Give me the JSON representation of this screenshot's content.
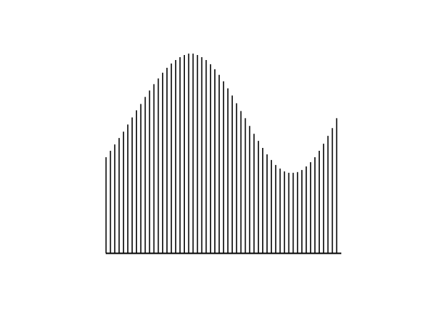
{
  "chart_data": {
    "type": "bar",
    "title": "",
    "xlabel": "",
    "ylabel": "",
    "grid": false,
    "legend": "none",
    "colors": {
      "bar": "#000000",
      "axis": "#000000",
      "background": "#ffffff"
    },
    "x": [
      1,
      2,
      3,
      4,
      5,
      6,
      7,
      8,
      9,
      10,
      11,
      12,
      13,
      14,
      15,
      16,
      17,
      18,
      19,
      20,
      21,
      22,
      23,
      24,
      25,
      26,
      27,
      28,
      29,
      30,
      31,
      32,
      33,
      34,
      35,
      36,
      37,
      38,
      39,
      40,
      41,
      42,
      43,
      44,
      45,
      46,
      47,
      48,
      49,
      50,
      51,
      52,
      53,
      54
    ],
    "values": [
      135,
      144,
      153,
      162,
      171,
      181,
      191,
      201,
      210,
      220,
      229,
      238,
      246,
      254,
      261,
      267,
      272,
      276,
      279,
      281,
      281,
      279,
      276,
      272,
      266,
      259,
      251,
      242,
      232,
      222,
      211,
      200,
      190,
      179,
      168,
      158,
      148,
      139,
      131,
      124,
      119,
      115,
      113,
      113,
      114,
      117,
      122,
      128,
      135,
      144,
      154,
      165,
      176,
      190
    ],
    "ylim": [
      0,
      300
    ]
  }
}
